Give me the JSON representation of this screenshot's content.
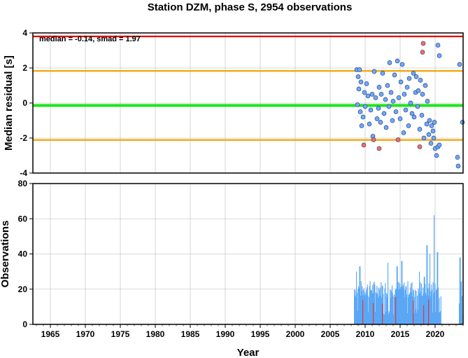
{
  "title": "Station DZM, phase S, 2954 observations",
  "chart_data": [
    {
      "type": "scatter",
      "ylabel": "Median residual [s]",
      "annotation": "median = -0.14, smad = 1.97",
      "xlim": [
        1962.5,
        2024
      ],
      "ylim": [
        -4,
        4
      ],
      "yticks": [
        4,
        2,
        0,
        -2,
        -4
      ],
      "grid": true,
      "reference_lines": [
        {
          "y": 3.8,
          "color": "#e60000"
        },
        {
          "y": 1.83,
          "color": "#f5a300"
        },
        {
          "y": -0.14,
          "color": "#19e619"
        },
        {
          "y": -2.11,
          "color": "#f5a300"
        }
      ],
      "series": [
        {
          "color": "#6fa8ff",
          "points": [
            [
              2008.8,
              1.9
            ],
            [
              2009.0,
              1.5
            ],
            [
              2009.2,
              1.9
            ],
            [
              2009.1,
              0.8
            ],
            [
              2009.4,
              1.2
            ],
            [
              2008.9,
              -0.1
            ],
            [
              2009.3,
              -0.5
            ],
            [
              2009.5,
              -1.3
            ],
            [
              2009.7,
              -0.8
            ],
            [
              2009.9,
              0.6
            ],
            [
              2010.0,
              -0.2
            ],
            [
              2010.2,
              1.1
            ],
            [
              2010.4,
              0.4
            ],
            [
              2010.6,
              -1.2
            ],
            [
              2010.8,
              -0.4
            ],
            [
              2011.0,
              0.5
            ],
            [
              2011.1,
              -1.9
            ],
            [
              2011.3,
              1.8
            ],
            [
              2011.5,
              0.3
            ],
            [
              2011.7,
              -0.9
            ],
            [
              2011.9,
              -0.3
            ],
            [
              2012.0,
              0.9
            ],
            [
              2012.2,
              -1.1
            ],
            [
              2012.3,
              0.5
            ],
            [
              2012.5,
              1.7
            ],
            [
              2012.7,
              -0.6
            ],
            [
              2012.9,
              0.2
            ],
            [
              2013.0,
              -1.4
            ],
            [
              2013.2,
              1.0
            ],
            [
              2013.4,
              -0.2
            ],
            [
              2013.5,
              2.3
            ],
            [
              2013.7,
              0.6
            ],
            [
              2013.9,
              -1.0
            ],
            [
              2014.0,
              0.1
            ],
            [
              2014.2,
              1.6
            ],
            [
              2014.4,
              -0.5
            ],
            [
              2014.6,
              2.4
            ],
            [
              2014.8,
              0.3
            ],
            [
              2015.0,
              -0.9
            ],
            [
              2015.1,
              1.2
            ],
            [
              2015.3,
              2.2
            ],
            [
              2015.5,
              -1.7
            ],
            [
              2015.6,
              0.5
            ],
            [
              2015.8,
              -0.4
            ],
            [
              2016.0,
              0.9
            ],
            [
              2016.2,
              -1.3
            ],
            [
              2016.3,
              1.4
            ],
            [
              2016.5,
              0.0
            ],
            [
              2016.7,
              -0.6
            ],
            [
              2016.9,
              1.7
            ],
            [
              2017.0,
              -0.8
            ],
            [
              2017.2,
              0.6
            ],
            [
              2017.3,
              1.5
            ],
            [
              2017.5,
              -0.2
            ],
            [
              2017.6,
              0.7
            ],
            [
              2017.8,
              -1.5
            ],
            [
              2017.9,
              1.3
            ],
            [
              2018.1,
              -0.7
            ],
            [
              2018.2,
              0.5
            ],
            [
              2018.4,
              -2.0
            ],
            [
              2018.6,
              1.0
            ],
            [
              2018.8,
              -1.2
            ],
            [
              2018.9,
              0.1
            ],
            [
              2019.1,
              -1.8
            ],
            [
              2019.2,
              -1.0
            ],
            [
              2019.4,
              -2.3
            ],
            [
              2019.5,
              -1.3
            ],
            [
              2019.7,
              -1.6
            ],
            [
              2019.8,
              -2.0
            ],
            [
              2020.0,
              -2.6
            ],
            [
              2020.2,
              -3.0
            ],
            [
              2020.4,
              -2.5
            ],
            [
              2020.6,
              -2.4
            ],
            [
              2020.4,
              3.3
            ],
            [
              2020.6,
              2.7
            ],
            [
              2023.3,
              -3.6
            ],
            [
              2023.5,
              2.2
            ],
            [
              2023.9,
              -1.1
            ],
            [
              2023.2,
              -3.1
            ],
            [
              2019.9,
              -1.1
            ]
          ]
        },
        {
          "color": "#ff6b5b",
          "points": [
            [
              2009.8,
              -2.4
            ],
            [
              2011.2,
              -2.1
            ],
            [
              2012.0,
              -2.6
            ],
            [
              2014.7,
              -2.1
            ],
            [
              2017.8,
              -2.5
            ],
            [
              2018.3,
              3.4
            ],
            [
              2018.2,
              2.9
            ]
          ]
        }
      ]
    },
    {
      "type": "bar",
      "ylabel": "Observations",
      "xlabel": "Year",
      "xlim": [
        1962.5,
        2024
      ],
      "ylim": [
        0,
        80
      ],
      "yticks": [
        80,
        60,
        40,
        20,
        0
      ],
      "xticks": [
        1965,
        1970,
        1975,
        1980,
        1985,
        1990,
        1995,
        2000,
        2005,
        2010,
        2015,
        2020
      ],
      "grid": true,
      "bar_color": "#5aa7f5",
      "highlight_color": "#e03a3a",
      "ranges": [
        {
          "start": 2008.4,
          "end": 2020.8,
          "base": 18,
          "amp": 10
        },
        {
          "start": 2023.4,
          "end": 2024.0,
          "base": 8,
          "amp": 30
        }
      ],
      "peaks": [
        {
          "x": 2008.7,
          "y": 30
        },
        {
          "x": 2009.2,
          "y": 33
        },
        {
          "x": 2013.2,
          "y": 35
        },
        {
          "x": 2014.5,
          "y": 33
        },
        {
          "x": 2015.2,
          "y": 36
        },
        {
          "x": 2017.7,
          "y": 30
        },
        {
          "x": 2018.4,
          "y": 27
        },
        {
          "x": 2018.8,
          "y": 45
        },
        {
          "x": 2019.2,
          "y": 40
        },
        {
          "x": 2019.8,
          "y": 62
        },
        {
          "x": 2020.3,
          "y": 41
        },
        {
          "x": 2023.5,
          "y": 38
        }
      ],
      "red_marks": [
        2009.6,
        2011.1,
        2012.4,
        2014.3,
        2016.8,
        2018.3,
        2019.0
      ]
    }
  ]
}
